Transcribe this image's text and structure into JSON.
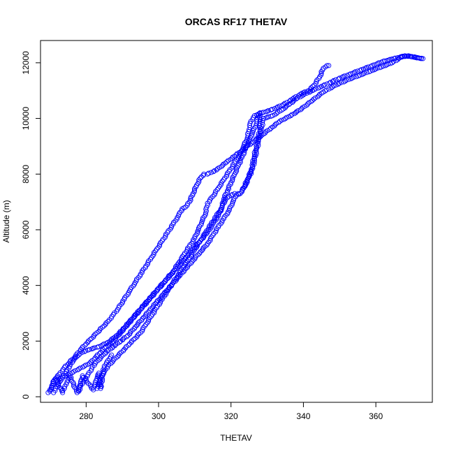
{
  "chart_data": {
    "type": "scatter",
    "title": "ORCAS RF17 THETAV",
    "xlabel": "THETAV",
    "ylabel": "Altitude (m)",
    "xlim": [
      267.4,
      375.6
    ],
    "ylim": [
      -200,
      12800
    ],
    "x_ticks": [
      280,
      300,
      320,
      340,
      360
    ],
    "y_ticks": [
      0,
      2000,
      4000,
      6000,
      8000,
      10000,
      12000
    ],
    "marker": "open-circle",
    "marker_color": "#0000ff",
    "grid": false,
    "legend": "none",
    "series": [
      {
        "points": [
          [
            270.0,
            200
          ],
          [
            270.5,
            350
          ],
          [
            271.2,
            600
          ],
          [
            272.5,
            800
          ],
          [
            274.0,
            1050
          ],
          [
            275.5,
            1250
          ],
          [
            277.0,
            1450
          ],
          [
            278.5,
            1700
          ],
          [
            280.0,
            1900
          ],
          [
            281.5,
            2100
          ],
          [
            283.0,
            2300
          ],
          [
            284.5,
            2500
          ],
          [
            286.0,
            2700
          ],
          [
            287.5,
            2950
          ],
          [
            289.0,
            3200
          ],
          [
            290.5,
            3500
          ],
          [
            292.0,
            3800
          ],
          [
            293.5,
            4100
          ],
          [
            295.0,
            4400
          ],
          [
            296.5,
            4700
          ],
          [
            298.0,
            5000
          ],
          [
            299.5,
            5300
          ],
          [
            301.0,
            5600
          ],
          [
            302.5,
            5900
          ],
          [
            304.0,
            6200
          ],
          [
            305.5,
            6500
          ],
          [
            306.5,
            6750
          ],
          [
            307.5,
            6820
          ],
          [
            308.5,
            7000
          ],
          [
            309.5,
            7300
          ],
          [
            310.5,
            7600
          ],
          [
            311.5,
            7850
          ],
          [
            312.5,
            8000
          ],
          [
            313.5,
            8000
          ],
          [
            316.0,
            8150
          ],
          [
            318.5,
            8400
          ],
          [
            321.0,
            8650
          ],
          [
            323.5,
            8900
          ],
          [
            326.0,
            9150
          ],
          [
            328.5,
            9400
          ],
          [
            331.0,
            9650
          ],
          [
            333.5,
            9900
          ],
          [
            336.5,
            10100
          ],
          [
            339.5,
            10350
          ],
          [
            342.5,
            10650
          ],
          [
            345.5,
            10950
          ],
          [
            349.0,
            11200
          ],
          [
            352.5,
            11400
          ],
          [
            355.5,
            11550
          ],
          [
            358.5,
            11700
          ],
          [
            361.5,
            11850
          ],
          [
            364.5,
            12000
          ],
          [
            367.0,
            12200
          ],
          [
            369.0,
            12250
          ],
          [
            371.0,
            12200
          ],
          [
            373.0,
            12150
          ]
        ]
      },
      {
        "points": [
          [
            271.0,
            150
          ],
          [
            271.5,
            300
          ],
          [
            272.5,
            500
          ],
          [
            273.5,
            700
          ],
          [
            274.5,
            900
          ],
          [
            275.5,
            1100
          ],
          [
            276.5,
            1300
          ],
          [
            277.5,
            1450
          ],
          [
            279.0,
            1600
          ],
          [
            281.0,
            1700
          ],
          [
            283.5,
            1800
          ],
          [
            286.0,
            1950
          ],
          [
            288.0,
            2150
          ],
          [
            290.0,
            2400
          ],
          [
            292.0,
            2700
          ],
          [
            294.0,
            3000
          ],
          [
            296.0,
            3300
          ],
          [
            298.0,
            3600
          ],
          [
            300.0,
            3900
          ],
          [
            302.0,
            4200
          ],
          [
            304.0,
            4500
          ],
          [
            305.5,
            4800
          ],
          [
            307.0,
            5100
          ],
          [
            308.5,
            5400
          ],
          [
            310.0,
            5700
          ],
          [
            311.0,
            6000
          ],
          [
            312.0,
            6300
          ],
          [
            313.0,
            6600
          ],
          [
            313.5,
            6950
          ],
          [
            315.0,
            7200
          ],
          [
            316.5,
            7500
          ],
          [
            318.0,
            7800
          ],
          [
            319.5,
            8100
          ],
          [
            321.0,
            8400
          ],
          [
            322.5,
            8700
          ],
          [
            323.5,
            9000
          ],
          [
            324.5,
            9300
          ],
          [
            325.0,
            9600
          ],
          [
            325.5,
            9900
          ],
          [
            326.5,
            10100
          ],
          [
            327.5,
            10150
          ],
          [
            328.5,
            10200
          ],
          [
            331.0,
            10300
          ],
          [
            334.5,
            10500
          ],
          [
            337.0,
            10700
          ],
          [
            339.5,
            10900
          ],
          [
            341.5,
            11000
          ],
          [
            343.0,
            11200
          ],
          [
            344.5,
            11500
          ],
          [
            345.5,
            11800
          ],
          [
            346.5,
            11900
          ],
          [
            347.0,
            11900
          ]
        ]
      },
      {
        "points": [
          [
            272.0,
            600
          ],
          [
            273.5,
            700
          ],
          [
            275.0,
            800
          ],
          [
            276.5,
            900
          ],
          [
            278.0,
            1000
          ],
          [
            279.5,
            1100
          ],
          [
            281.0,
            1200
          ],
          [
            282.5,
            1400
          ],
          [
            284.0,
            1600
          ],
          [
            285.5,
            1800
          ],
          [
            287.5,
            2000
          ],
          [
            289.5,
            2300
          ],
          [
            291.5,
            2600
          ],
          [
            293.5,
            2900
          ],
          [
            295.5,
            3200
          ],
          [
            297.5,
            3500
          ],
          [
            299.5,
            3800
          ],
          [
            301.5,
            4100
          ],
          [
            303.5,
            4400
          ],
          [
            305.5,
            4700
          ],
          [
            307.5,
            5000
          ],
          [
            309.5,
            5300
          ],
          [
            311.5,
            5600
          ],
          [
            313.5,
            5900
          ],
          [
            315.0,
            6200
          ],
          [
            316.5,
            6500
          ],
          [
            317.5,
            6800
          ],
          [
            318.0,
            7100
          ],
          [
            319.0,
            7400
          ],
          [
            320.0,
            7700
          ],
          [
            321.0,
            8000
          ],
          [
            322.0,
            8300
          ],
          [
            323.0,
            8600
          ],
          [
            324.0,
            8900
          ],
          [
            325.0,
            9200
          ],
          [
            326.0,
            9500
          ],
          [
            327.0,
            9800
          ],
          [
            327.5,
            10100
          ],
          [
            328.0,
            10200
          ]
        ]
      },
      {
        "points": [
          [
            278.0,
            200
          ],
          [
            278.5,
            400
          ],
          [
            279.5,
            600
          ],
          [
            280.5,
            800
          ],
          [
            281.5,
            1000
          ],
          [
            282.5,
            1200
          ],
          [
            284.0,
            1400
          ],
          [
            285.5,
            1600
          ],
          [
            287.5,
            1800
          ],
          [
            289.5,
            2000
          ],
          [
            291.5,
            2200
          ],
          [
            293.5,
            2500
          ],
          [
            295.5,
            2800
          ],
          [
            297.5,
            3100
          ],
          [
            299.5,
            3400
          ],
          [
            301.5,
            3700
          ],
          [
            303.5,
            4000
          ],
          [
            305.5,
            4300
          ],
          [
            307.5,
            4600
          ],
          [
            309.5,
            4900
          ],
          [
            311.5,
            5200
          ],
          [
            313.5,
            5500
          ],
          [
            315.0,
            5800
          ],
          [
            316.5,
            6100
          ],
          [
            318.0,
            6400
          ],
          [
            319.5,
            6700
          ],
          [
            320.5,
            7000
          ],
          [
            321.5,
            7250
          ],
          [
            322.5,
            7300
          ],
          [
            323.5,
            7500
          ],
          [
            324.5,
            7800
          ],
          [
            325.5,
            8100
          ],
          [
            326.0,
            8400
          ],
          [
            326.5,
            8700
          ],
          [
            327.0,
            9000
          ],
          [
            327.5,
            9300
          ],
          [
            328.0,
            9600
          ],
          [
            328.0,
            9900
          ],
          [
            328.0,
            10100
          ]
        ]
      },
      {
        "points": [
          [
            283.0,
            300
          ],
          [
            283.5,
            500
          ],
          [
            284.0,
            700
          ],
          [
            285.0,
            900
          ],
          [
            286.0,
            1100
          ],
          [
            287.5,
            1300
          ],
          [
            289.0,
            1500
          ],
          [
            290.5,
            1700
          ],
          [
            292.0,
            1900
          ],
          [
            293.5,
            2100
          ],
          [
            295.0,
            2300
          ],
          [
            296.5,
            2600
          ],
          [
            298.0,
            2900
          ],
          [
            299.5,
            3200
          ],
          [
            301.0,
            3500
          ],
          [
            302.5,
            3800
          ],
          [
            304.0,
            4100
          ],
          [
            305.5,
            4400
          ],
          [
            307.0,
            4700
          ],
          [
            308.5,
            5000
          ],
          [
            310.0,
            5300
          ],
          [
            311.5,
            5600
          ],
          [
            313.0,
            5900
          ],
          [
            314.5,
            6200
          ],
          [
            316.0,
            6500
          ],
          [
            317.5,
            6800
          ],
          [
            318.5,
            7100
          ],
          [
            319.5,
            7200
          ],
          [
            321.0,
            7300
          ],
          [
            322.5,
            7300
          ],
          [
            324.0,
            7600
          ],
          [
            325.0,
            7900
          ],
          [
            326.0,
            8200
          ],
          [
            326.5,
            8500
          ],
          [
            327.0,
            8800
          ],
          [
            327.5,
            9100
          ],
          [
            328.0,
            9400
          ],
          [
            328.5,
            9700
          ],
          [
            329.0,
            10000
          ],
          [
            331.5,
            10100
          ],
          [
            334.0,
            10300
          ],
          [
            336.0,
            10500
          ],
          [
            338.0,
            10700
          ],
          [
            340.0,
            10850
          ],
          [
            342.5,
            11000
          ],
          [
            345.0,
            11150
          ],
          [
            347.5,
            11300
          ],
          [
            350.0,
            11450
          ],
          [
            353.0,
            11600
          ],
          [
            356.0,
            11750
          ],
          [
            359.0,
            11900
          ],
          [
            362.0,
            12050
          ],
          [
            365.0,
            12150
          ],
          [
            368.0,
            12250
          ],
          [
            370.5,
            12200
          ],
          [
            372.5,
            12150
          ]
        ]
      },
      {
        "points": [
          [
            269.5,
            150
          ],
          [
            270.0,
            250
          ],
          [
            270.5,
            400
          ],
          [
            271.0,
            550
          ],
          [
            271.5,
            650
          ],
          [
            273.5,
            150
          ],
          [
            274.0,
            300
          ],
          [
            274.5,
            450
          ],
          [
            275.0,
            600
          ],
          [
            275.5,
            750
          ],
          [
            277.5,
            150
          ],
          [
            278.0,
            350
          ],
          [
            278.5,
            550
          ],
          [
            279.0,
            750
          ],
          [
            282.0,
            250
          ],
          [
            282.5,
            450
          ],
          [
            283.0,
            650
          ],
          [
            283.5,
            850
          ],
          [
            284.0,
            300
          ],
          [
            285.0,
            1100
          ],
          [
            286.0,
            1300
          ],
          [
            287.0,
            1500
          ]
        ]
      }
    ]
  }
}
